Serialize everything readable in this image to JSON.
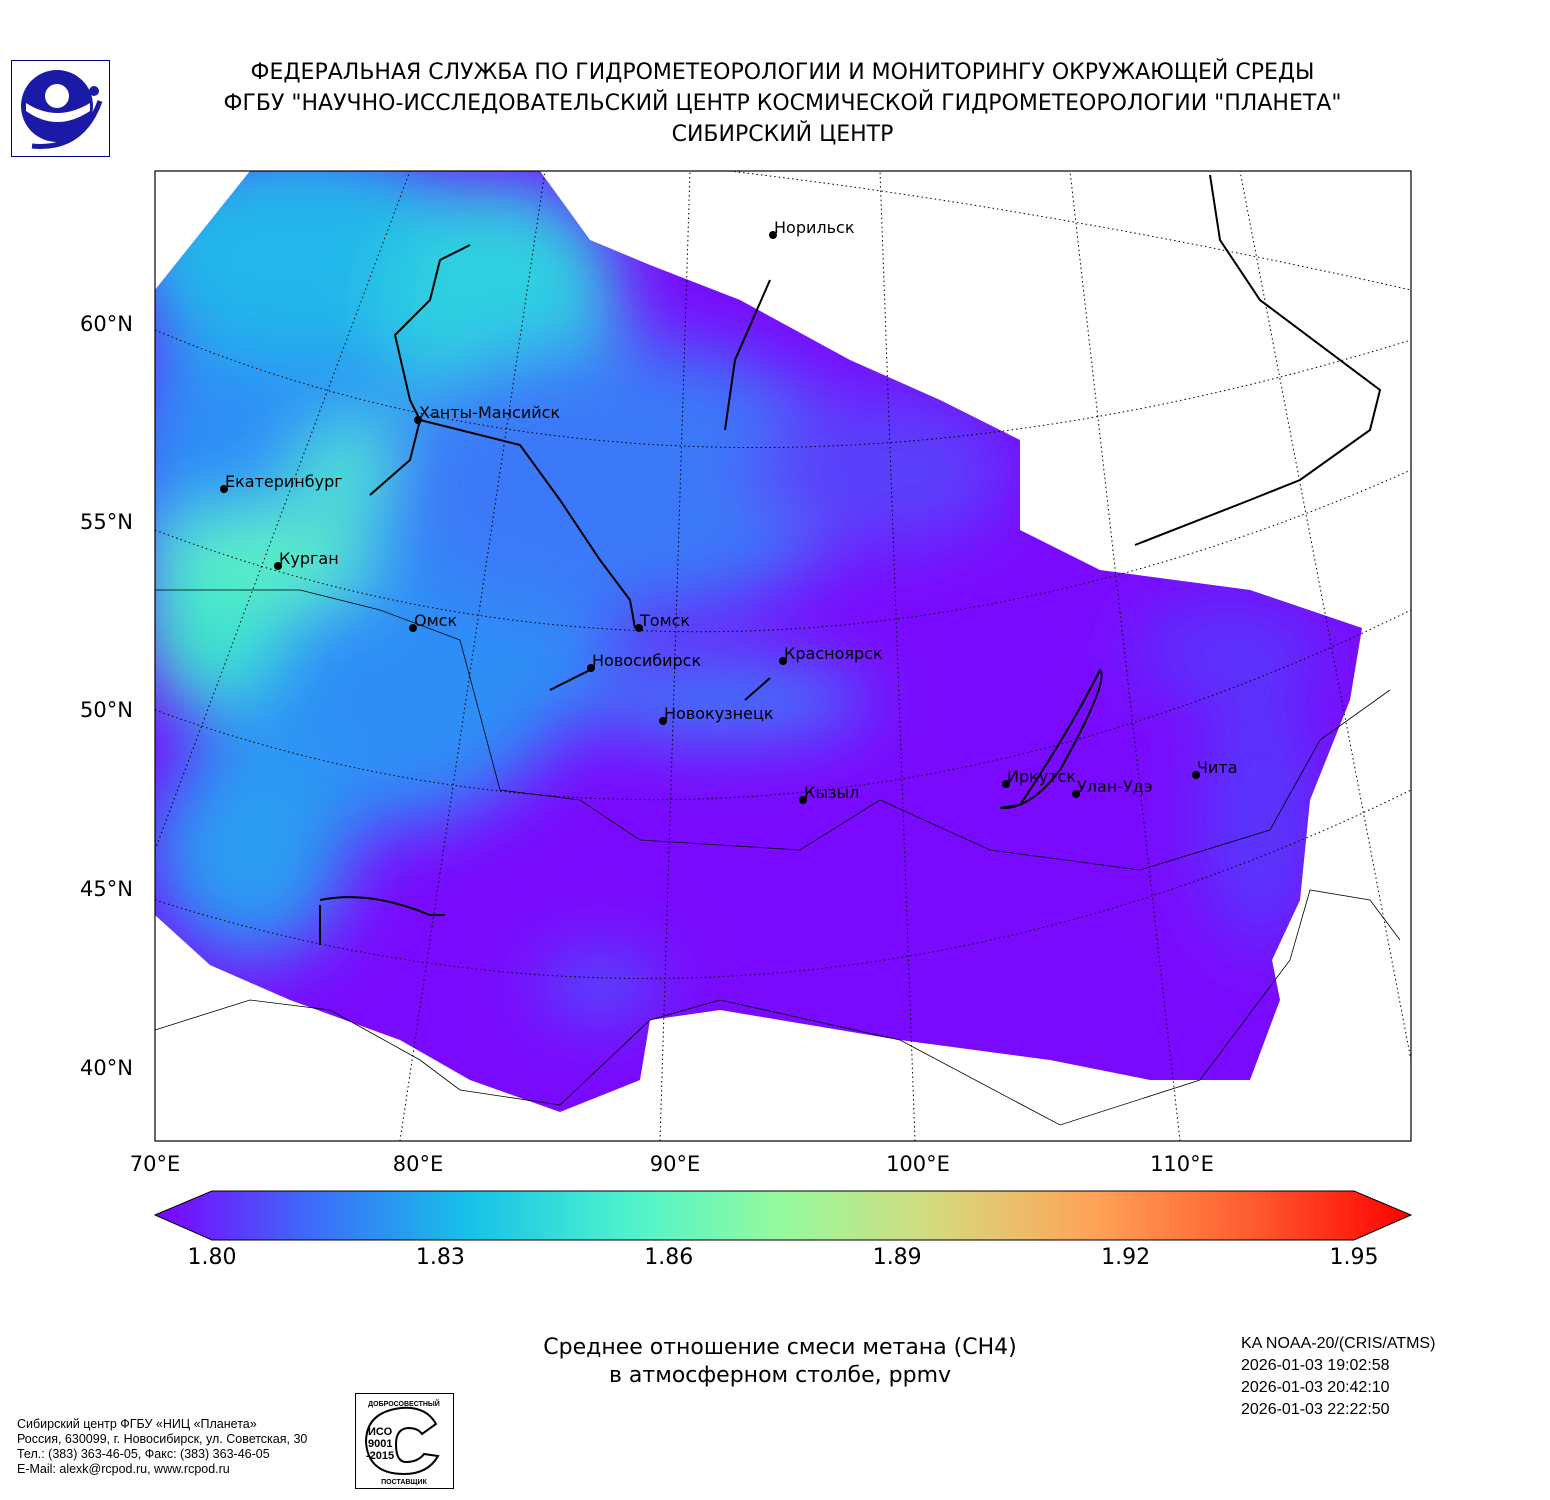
{
  "header": {
    "line1": "ФЕДЕРАЛЬНАЯ СЛУЖБА ПО ГИДРОМЕТЕОРОЛОГИИ И МОНИТОРИНГУ ОКРУЖАЮЩЕЙ СРЕДЫ",
    "line2": "ФГБУ \"НАУЧНО-ИССЛЕДОВАТЕЛЬСКИЙ ЦЕНТР КОСМИЧЕСКОЙ ГИДРОМЕТЕОРОЛОГИИ \"ПЛАНЕТА\"",
    "line3": "СИБИРСКИЙ ЦЕНТР"
  },
  "map": {
    "lat_labels": [
      "60°N",
      "55°N",
      "50°N",
      "45°N",
      "40°N"
    ],
    "lon_labels": [
      "70°E",
      "80°E",
      "90°E",
      "100°E",
      "110°E"
    ],
    "cities": [
      {
        "name": "Норильск",
        "lon": 88.2,
        "lat": 69.3
      },
      {
        "name": "Ханты-Мансийск",
        "lon": 69.0,
        "lat": 61.0
      },
      {
        "name": "Екатеринбург",
        "lon": 60.6,
        "lat": 56.8
      },
      {
        "name": "Курган",
        "lon": 65.3,
        "lat": 55.4
      },
      {
        "name": "Омск",
        "lon": 73.4,
        "lat": 55.0
      },
      {
        "name": "Томск",
        "lon": 85.0,
        "lat": 56.5
      },
      {
        "name": "Новосибирск",
        "lon": 82.9,
        "lat": 55.0
      },
      {
        "name": "Красноярск",
        "lon": 92.9,
        "lat": 56.0
      },
      {
        "name": "Новокузнецк",
        "lon": 87.1,
        "lat": 53.8
      },
      {
        "name": "Кызыл",
        "lon": 94.4,
        "lat": 51.7
      },
      {
        "name": "Иркутск",
        "lon": 104.3,
        "lat": 52.3
      },
      {
        "name": "Улан-Удэ",
        "lon": 107.6,
        "lat": 51.8
      },
      {
        "name": "Чита",
        "lon": 113.5,
        "lat": 52.0
      }
    ]
  },
  "colorbar": {
    "min": 1.8,
    "max": 1.95,
    "ticks": [
      "1.80",
      "1.83",
      "1.86",
      "1.89",
      "1.92",
      "1.95"
    ],
    "colors": [
      "#7f00ff",
      "#3d6cf9",
      "#16c1e8",
      "#4cf2ce",
      "#96fa9e",
      "#d7d87c",
      "#ffa256",
      "#ff5a2e",
      "#ff0000"
    ]
  },
  "caption": {
    "line1": "Среднее отношение смеси метана (CH4)",
    "line2": "в атмосферном столбе, ppmv"
  },
  "satellite": {
    "name": "KA NOAA-20/(CRIS/ATMS)",
    "times": [
      "2026-01-03 19:02:58",
      "2026-01-03 20:42:10",
      "2026-01-03 22:22:50"
    ]
  },
  "footer": {
    "lines": [
      "Сибирский центр ФГБУ «НИЦ «Планета»",
      "Россия, 630099, г. Новосибирск, ул. Советская, 30",
      "Тел.: (383) 363-46-05, Факс: (383) 363-46-05",
      "E-Mail: alexk@rcpod.ru, www.rcpod.ru"
    ],
    "iso_badge": {
      "top": "ДОБРОСОВЕСТНЫЙ",
      "middle": "ИСО 9001 -2015",
      "bottom": "ПОСТАВЩИК"
    }
  }
}
